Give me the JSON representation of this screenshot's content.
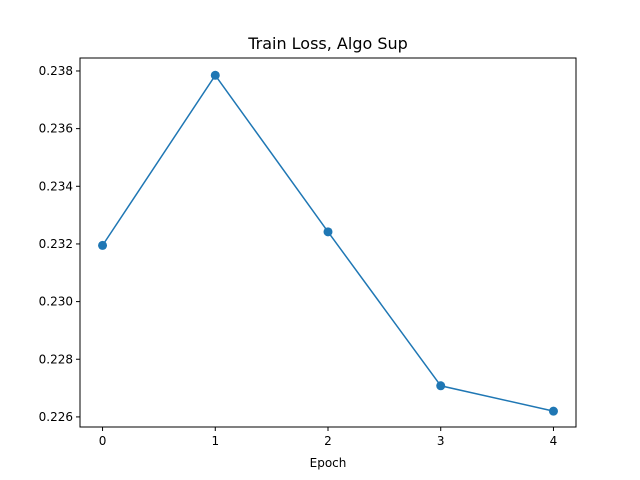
{
  "chart_data": {
    "type": "line",
    "title": "Train Loss, Algo Sup",
    "xlabel": "Epoch",
    "ylabel": "",
    "x": [
      0,
      1,
      2,
      3,
      4
    ],
    "x_ticks": [
      "0",
      "1",
      "2",
      "3",
      "4"
    ],
    "y_ticks": [
      "0.226",
      "0.228",
      "0.230",
      "0.232",
      "0.234",
      "0.236",
      "0.238"
    ],
    "ylim": [
      0.22565,
      0.23845
    ],
    "xlim": [
      -0.2,
      4.2
    ],
    "series": [
      {
        "values": [
          0.23195,
          0.23785,
          0.23242,
          0.22708,
          0.2262
        ],
        "color": "#1f77b4",
        "marker": "circle"
      }
    ],
    "grid": false,
    "legend": "none"
  }
}
